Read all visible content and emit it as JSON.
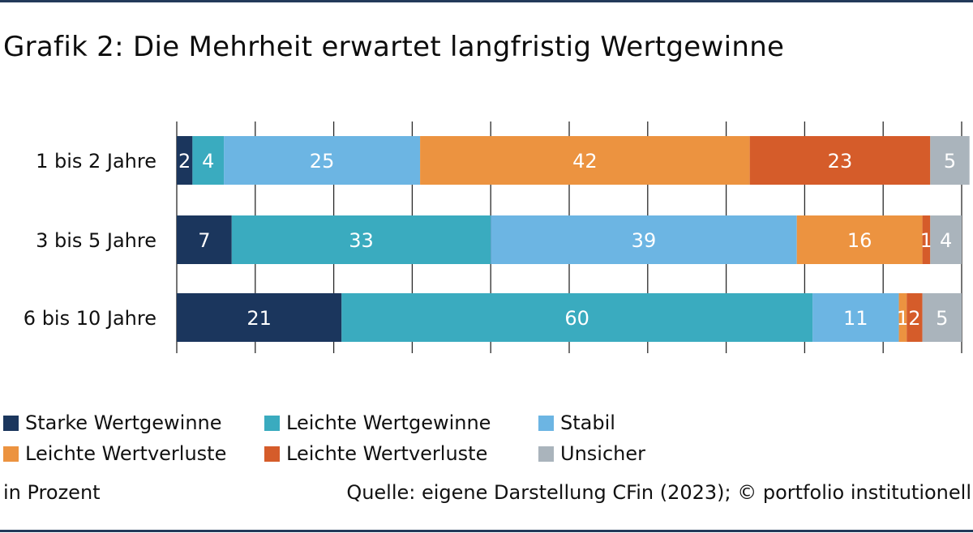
{
  "title": "Grafik 2: Die Mehrheit erwartet langfristig Wertgewinne",
  "chart_data": {
    "type": "bar",
    "orientation": "horizontal",
    "stacked": true,
    "categories": [
      "1 bis 2 Jahre",
      "3 bis 5 Jahre",
      "6 bis 10 Jahre"
    ],
    "series": [
      {
        "name": "Starke Wertgewinne",
        "color": "#1b365d",
        "values": [
          2,
          7,
          21
        ]
      },
      {
        "name": "Leichte Wertgewinne",
        "color": "#3aabbf",
        "values": [
          4,
          33,
          60
        ]
      },
      {
        "name": "Stabil",
        "color": "#6cb5e3",
        "values": [
          25,
          39,
          11
        ]
      },
      {
        "name": "Leichte Wertverluste",
        "color": "#ec9340",
        "values": [
          42,
          16,
          1
        ]
      },
      {
        "name": "Leichte Wertverluste",
        "color": "#d55c2a",
        "values": [
          23,
          1,
          2
        ]
      },
      {
        "name": "Unsicher",
        "color": "#aab4bc",
        "values": [
          5,
          4,
          5
        ]
      }
    ],
    "xlim": [
      0,
      100
    ],
    "grid": true,
    "legend_position": "bottom",
    "data_labels": true
  },
  "unit_note": "in Prozent",
  "source_note": "Quelle: eigene Darstellung CFin (2023); © portfolio institutionell"
}
